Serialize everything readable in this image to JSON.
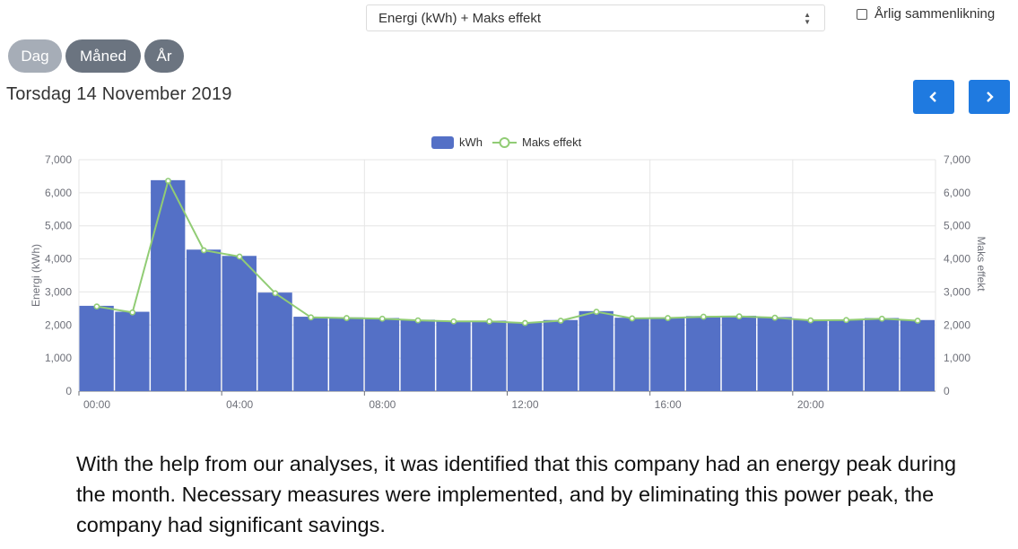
{
  "controls": {
    "metric_select": "Energi (kWh) + Maks effekt",
    "compare_label": "Årlig sammenlikning",
    "period_tabs": [
      "Dag",
      "Måned",
      "År"
    ],
    "date_label": "Torsdag 14 November 2019",
    "prev_icon": "chevron-left-icon",
    "next_icon": "chevron-right-icon"
  },
  "chart_data": {
    "type": "bar",
    "title": "",
    "ylabel": "Energi (kWh)",
    "y2label": "Maks effekt",
    "ylim": [
      0,
      7000
    ],
    "y2lim": [
      0,
      7000
    ],
    "yticks": [
      "0",
      "1,000",
      "2,000",
      "3,000",
      "4,000",
      "5,000",
      "6,000",
      "7,000"
    ],
    "xticks": [
      "00:00",
      "04:00",
      "08:00",
      "12:00",
      "16:00",
      "20:00"
    ],
    "grid": true,
    "legend_position": "top-center",
    "colors": {
      "bars": "#5470c6",
      "line": "#91cc75"
    },
    "categories": [
      "00:00",
      "01:00",
      "02:00",
      "03:00",
      "04:00",
      "05:00",
      "06:00",
      "07:00",
      "08:00",
      "09:00",
      "10:00",
      "11:00",
      "12:00",
      "13:00",
      "14:00",
      "15:00",
      "16:00",
      "17:00",
      "18:00",
      "19:00",
      "20:00",
      "21:00",
      "22:00",
      "23:00"
    ],
    "series": [
      {
        "name": "kWh",
        "type": "bar",
        "values": [
          2580,
          2400,
          6380,
          4280,
          4090,
          2980,
          2250,
          2230,
          2210,
          2160,
          2130,
          2130,
          2080,
          2150,
          2420,
          2220,
          2230,
          2270,
          2280,
          2240,
          2160,
          2170,
          2210,
          2150
        ]
      },
      {
        "name": "Maks effekt",
        "type": "line",
        "values": [
          2560,
          2380,
          6360,
          4260,
          4070,
          2960,
          2230,
          2210,
          2190,
          2140,
          2110,
          2110,
          2060,
          2130,
          2400,
          2200,
          2210,
          2250,
          2260,
          2220,
          2140,
          2150,
          2190,
          2130
        ]
      }
    ]
  },
  "caption": "With the help from our analyses, it was identified that this company had an energy peak during the month. Necessary measures were implemented, and by eliminating this power peak, the company had significant savings."
}
